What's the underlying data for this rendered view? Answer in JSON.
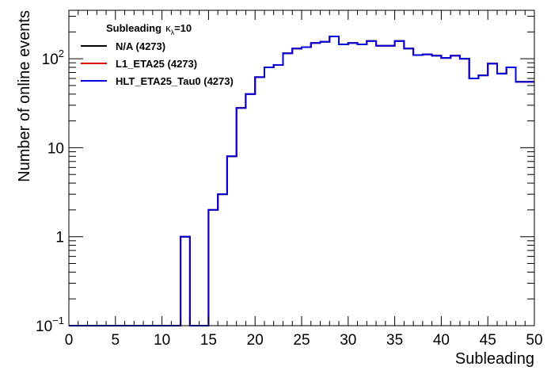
{
  "chart_data": {
    "type": "line",
    "title": "",
    "xlabel": "Subleading",
    "ylabel": "Number of online events",
    "xlim": [
      0,
      50
    ],
    "ylim": [
      0.1,
      350
    ],
    "yscale": "log",
    "legend": {
      "title_main": "Subleading",
      "title_kappa": "κ",
      "title_sub": "λ",
      "title_value": "=10",
      "placement": "top-left"
    },
    "x_ticks": [
      "0",
      "5",
      "10",
      "15",
      "20",
      "25",
      "30",
      "35",
      "40",
      "45",
      "50"
    ],
    "y_ticks": [
      {
        "label": "10",
        "exp": "−1"
      },
      {
        "label": "1",
        "exp": ""
      },
      {
        "label": "10",
        "exp": ""
      },
      {
        "label": "10",
        "exp": "2"
      }
    ],
    "bin_edges": [
      0,
      1,
      2,
      3,
      4,
      5,
      6,
      7,
      8,
      9,
      10,
      11,
      12,
      13,
      14,
      15,
      16,
      17,
      18,
      19,
      20,
      21,
      22,
      23,
      24,
      25,
      26,
      27,
      28,
      29,
      30,
      31,
      32,
      33,
      34,
      35,
      36,
      37,
      38,
      39,
      40,
      41,
      42,
      43,
      44,
      45,
      46,
      47,
      48,
      49,
      50
    ],
    "series": [
      {
        "name": "N/A (4273)",
        "color": "#000000",
        "values": [
          0.1,
          0.1,
          0.1,
          0.1,
          0.1,
          0.1,
          0.1,
          0.1,
          0.1,
          0.1,
          0.1,
          0.1,
          1,
          0.1,
          0.1,
          2,
          3,
          8,
          28,
          40,
          62,
          80,
          85,
          115,
          130,
          135,
          150,
          155,
          178,
          145,
          150,
          145,
          158,
          140,
          140,
          158,
          130,
          110,
          112,
          108,
          102,
          108,
          100,
          60,
          65,
          88,
          68,
          80,
          55,
          55
        ]
      },
      {
        "name": "L1_ETA25 (4273)",
        "color": "#e00000",
        "values": [
          0.1,
          0.1,
          0.1,
          0.1,
          0.1,
          0.1,
          0.1,
          0.1,
          0.1,
          0.1,
          0.1,
          0.1,
          1,
          0.1,
          0.1,
          2,
          3,
          8,
          28,
          40,
          62,
          80,
          85,
          115,
          130,
          135,
          150,
          155,
          178,
          145,
          150,
          145,
          158,
          140,
          140,
          158,
          130,
          110,
          112,
          108,
          102,
          108,
          100,
          60,
          65,
          88,
          68,
          80,
          55,
          55
        ]
      },
      {
        "name": "HLT_ETA25_Tau0 (4273)",
        "color": "#0000e0",
        "values": [
          0.1,
          0.1,
          0.1,
          0.1,
          0.1,
          0.1,
          0.1,
          0.1,
          0.1,
          0.1,
          0.1,
          0.1,
          1,
          0.1,
          0.1,
          2,
          3,
          8,
          28,
          40,
          62,
          80,
          85,
          115,
          130,
          135,
          150,
          155,
          178,
          145,
          150,
          145,
          158,
          140,
          140,
          158,
          130,
          110,
          112,
          108,
          102,
          108,
          100,
          60,
          65,
          88,
          68,
          80,
          55,
          55
        ]
      }
    ]
  }
}
